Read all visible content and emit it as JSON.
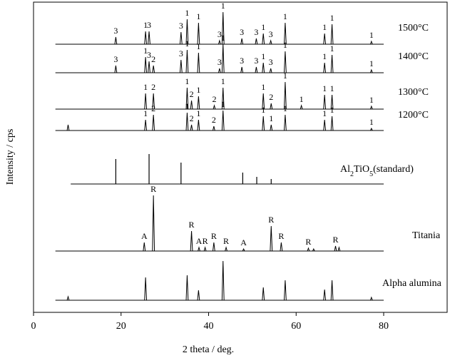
{
  "chart_data": {
    "type": "xrd",
    "x_label": "2 theta / deg.",
    "y_label": "Intensity / cps",
    "xlim": [
      0,
      94.5
    ],
    "xticks": [
      0,
      20,
      40,
      60,
      80
    ],
    "series": [
      {
        "name": "1500°C",
        "color": "#000000",
        "style": "pattern",
        "x": [
          5,
          18.8,
          25.6,
          26.4,
          33.7,
          35.1,
          37.7,
          42.5,
          43.3,
          47.6,
          50.9,
          52.5,
          54.2,
          57.5,
          66.5,
          68.2,
          77.2,
          80
        ],
        "values": [
          0,
          10,
          18,
          18,
          17,
          35,
          30,
          5,
          45,
          8,
          8,
          15,
          5,
          30,
          15,
          28,
          4,
          0
        ],
        "peak_labels": [
          null,
          "3",
          "1",
          "3",
          "3",
          "1",
          "1",
          "3",
          "1",
          "3",
          "3",
          "1",
          "3",
          "1",
          "1",
          "1",
          "1",
          null
        ]
      },
      {
        "name": "1400°C",
        "color": "#000000",
        "style": "pattern",
        "x": [
          5,
          18.8,
          25.6,
          26.4,
          27.4,
          33.7,
          35.1,
          37.7,
          42.5,
          43.3,
          47.6,
          50.9,
          52.5,
          54.2,
          57.5,
          66.5,
          68.2,
          77.2,
          80
        ],
        "values": [
          0,
          10,
          22,
          16,
          10,
          18,
          32,
          28,
          6,
          40,
          8,
          8,
          14,
          6,
          30,
          14,
          25,
          4,
          0
        ],
        "peak_labels": [
          null,
          "3",
          "1",
          "3",
          "2",
          "3",
          "1",
          "1",
          "3",
          "1",
          "3",
          "3",
          "1",
          "3",
          "1",
          "1",
          "1",
          "1",
          null
        ]
      },
      {
        "name": "1300°C",
        "color": "#000000",
        "style": "pattern",
        "x": [
          5,
          25.6,
          27.4,
          35.1,
          36.1,
          37.7,
          41.3,
          43.3,
          52.5,
          54.3,
          57.5,
          61.2,
          66.5,
          68.2,
          77.2,
          80
        ],
        "values": [
          0,
          22,
          22,
          30,
          12,
          18,
          5,
          30,
          22,
          8,
          38,
          5,
          20,
          20,
          4,
          0
        ],
        "peak_labels": [
          null,
          "1",
          "2",
          "1",
          "2",
          "1",
          "2",
          "1",
          "1",
          "2",
          "1",
          "1",
          "1",
          "1",
          "1",
          null
        ]
      },
      {
        "name": "1200°C",
        "color": "#000000",
        "style": "pattern",
        "x": [
          5,
          7.9,
          25.6,
          27.4,
          35.1,
          36.1,
          37.7,
          41.2,
          43.3,
          52.5,
          54.3,
          57.5,
          66.5,
          68.2,
          77.2,
          80
        ],
        "values": [
          0,
          8,
          15,
          22,
          25,
          8,
          15,
          6,
          28,
          20,
          8,
          22,
          15,
          20,
          3,
          0
        ],
        "peak_labels": [
          null,
          null,
          "1",
          "2",
          "1",
          "2",
          "1",
          "2",
          "1",
          "1",
          "1",
          "1",
          "1",
          "1",
          "1",
          null
        ]
      },
      {
        "name": "Al2TiO5(standard)",
        "color": "#000000",
        "style": "sticks",
        "x": [
          8.5,
          18.8,
          26.4,
          33.7,
          47.8,
          51.0,
          54.3,
          80
        ],
        "values": [
          0,
          35,
          42,
          30,
          16,
          10,
          7,
          0
        ]
      },
      {
        "name": "Titania",
        "color": "#000000",
        "style": "pattern",
        "x": [
          5,
          25.3,
          27.4,
          36.1,
          37.8,
          39.2,
          41.2,
          44.0,
          48.0,
          54.3,
          56.6,
          62.8,
          64.0,
          69.0,
          69.8,
          80
        ],
        "values": [
          0,
          12,
          78,
          28,
          5,
          5,
          12,
          5,
          3,
          35,
          12,
          4,
          3,
          7,
          5,
          0
        ],
        "peak_labels": [
          null,
          "A",
          "R",
          "R",
          "A",
          "R",
          "R",
          "R",
          "A",
          "R",
          "R",
          "R",
          null,
          "R",
          null,
          null
        ]
      },
      {
        "name": "Alpha alumina",
        "color": "#000000",
        "style": "pattern",
        "x": [
          5,
          7.9,
          25.6,
          35.1,
          37.7,
          43.3,
          52.5,
          57.5,
          66.5,
          68.2,
          77.2,
          80
        ],
        "values": [
          0,
          5,
          32,
          35,
          14,
          55,
          18,
          28,
          15,
          28,
          4,
          0
        ]
      }
    ]
  }
}
